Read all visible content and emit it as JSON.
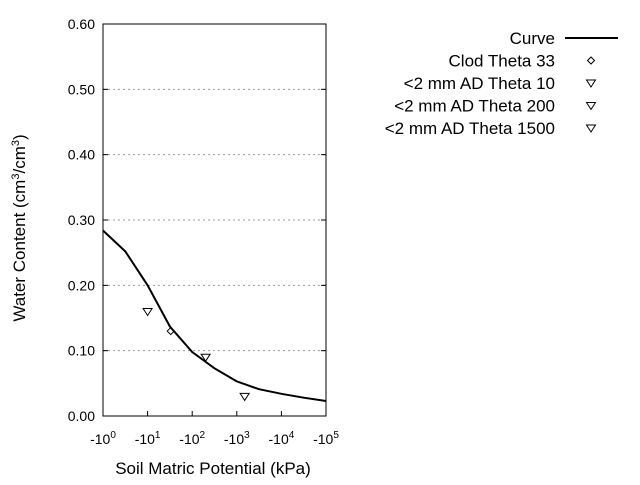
{
  "chart_data": {
    "type": "line",
    "xlabel": "Soil Matric Potential (kPa)",
    "ylabel": {
      "main": "Water Content (cm",
      "sup1": "3",
      "mid": "/cm",
      "sup2": "3",
      "end": ")"
    },
    "x_scale": "log",
    "xlim": [
      1,
      100000
    ],
    "ylim": [
      0,
      0.6
    ],
    "x_ticks": [
      {
        "base": "-10",
        "exp": "0"
      },
      {
        "base": "-10",
        "exp": "1"
      },
      {
        "base": "-10",
        "exp": "2"
      },
      {
        "base": "-10",
        "exp": "3"
      },
      {
        "base": "-10",
        "exp": "4"
      },
      {
        "base": "-10",
        "exp": "5"
      }
    ],
    "y_ticks": [
      "0.00",
      "0.10",
      "0.20",
      "0.30",
      "0.40",
      "0.50",
      "0.60"
    ],
    "grid": "horizontal dotted",
    "legend_position": "top-right outside",
    "series": [
      {
        "name": "Curve",
        "kind": "line",
        "x": [
          1,
          3.16,
          10,
          31.6,
          100,
          316,
          1000,
          3162,
          10000,
          31623,
          100000
        ],
        "y": [
          0.284,
          0.252,
          0.2,
          0.137,
          0.098,
          0.073,
          0.053,
          0.041,
          0.034,
          0.028,
          0.023
        ]
      },
      {
        "name": "Clod Theta 33",
        "kind": "diamond",
        "x": [
          33
        ],
        "y": [
          0.13
        ]
      },
      {
        "name": "<2 mm AD Theta 10",
        "kind": "triangle",
        "x": [
          10
        ],
        "y": [
          0.16
        ]
      },
      {
        "name": "<2 mm AD Theta 200",
        "kind": "triangle",
        "x": [
          200
        ],
        "y": [
          0.09
        ]
      },
      {
        "name": "<2 mm AD Theta 1500",
        "kind": "triangle",
        "x": [
          1500
        ],
        "y": [
          0.03
        ]
      }
    ]
  }
}
